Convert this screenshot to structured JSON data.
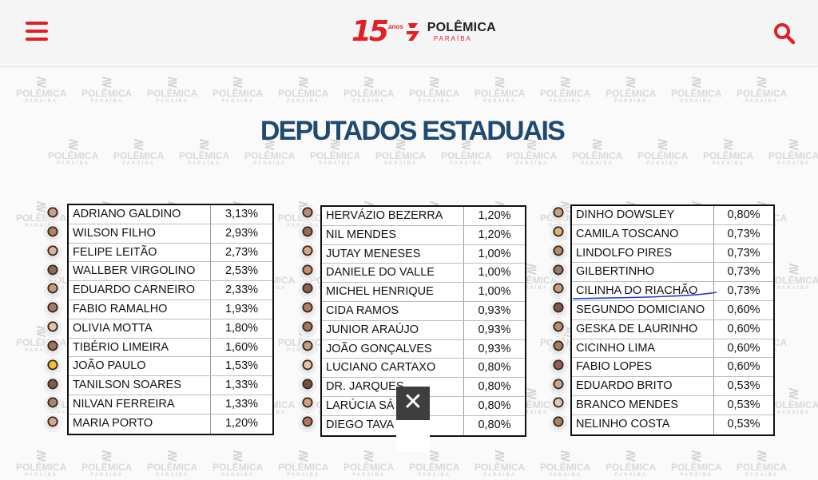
{
  "header": {
    "logo_number": "15",
    "logo_anos": "anos",
    "logo_brand": "POLÊMICA",
    "logo_sub": "PARAÍBA",
    "brand_color": "#e41e26"
  },
  "watermark": {
    "brand": "POLÊMICA",
    "sub": "PARAÍBA"
  },
  "main": {
    "title": "DEPUTADOS ESTADUAIS",
    "title_color": "#1f4a6f"
  },
  "tables": [
    {
      "rows": [
        {
          "name": "ADRIANO GALDINO",
          "pct": "3,13%"
        },
        {
          "name": "WILSON FILHO",
          "pct": "2,93%"
        },
        {
          "name": "FELIPE LEITÃO",
          "pct": "2,73%"
        },
        {
          "name": "WALLBER VIRGOLINO",
          "pct": "2,53%"
        },
        {
          "name": "EDUARDO CARNEIRO",
          "pct": "2,33%"
        },
        {
          "name": "FABIO RAMALHO",
          "pct": "1,93%"
        },
        {
          "name": "OLIVIA MOTTA",
          "pct": "1,80%"
        },
        {
          "name": "TIBÉRIO LIMEIRA",
          "pct": "1,60%"
        },
        {
          "name": "JOÃO PAULO",
          "pct": "1,53%"
        },
        {
          "name": "TANILSON SOARES",
          "pct": "1,33%"
        },
        {
          "name": "NILVAN FERREIRA",
          "pct": "1,33%"
        },
        {
          "name": "MARIA PORTO",
          "pct": "1,20%"
        }
      ]
    },
    {
      "rows": [
        {
          "name": "HERVÁZIO BEZERRA",
          "pct": "1,20%"
        },
        {
          "name": "NIL MENDES",
          "pct": "1,20%"
        },
        {
          "name": "JUTAY MENESES",
          "pct": "1,00%"
        },
        {
          "name": "DANIELE DO VALLE",
          "pct": "1,00%"
        },
        {
          "name": "MICHEL HENRIQUE",
          "pct": "1,00%"
        },
        {
          "name": "CIDA RAMOS",
          "pct": "0,93%"
        },
        {
          "name": "JUNIOR ARAÚJO",
          "pct": "0,93%"
        },
        {
          "name": "JOÃO GONÇALVES",
          "pct": "0,93%"
        },
        {
          "name": "LUCIANO CARTAXO",
          "pct": "0,80%"
        },
        {
          "name": "DR. JARQUES",
          "pct": "0,80%"
        },
        {
          "name": "LARÚCIA SÁ",
          "pct": "0,80%"
        },
        {
          "name": "DIEGO TAVA",
          "pct": "0,80%"
        }
      ]
    },
    {
      "rows": [
        {
          "name": "DINHO DOWSLEY",
          "pct": "0,80%"
        },
        {
          "name": "CAMILA TOSCANO",
          "pct": "0,73%"
        },
        {
          "name": "LINDOLFO PIRES",
          "pct": "0,73%"
        },
        {
          "name": "GILBERTINHO",
          "pct": "0,73%"
        },
        {
          "name": "CILINHA DO RIACHÃO",
          "pct": "0,73%"
        },
        {
          "name": "SEGUNDO DOMICIANO",
          "pct": "0,60%"
        },
        {
          "name": "GESKA DE LAURINHO",
          "pct": "0,60%"
        },
        {
          "name": "CICINHO LIMA",
          "pct": "0,60%"
        },
        {
          "name": "FABIO LOPES",
          "pct": "0,60%"
        },
        {
          "name": "EDUARDO BRITO",
          "pct": "0,53%"
        },
        {
          "name": "BRANCO MENDES",
          "pct": "0,53%"
        },
        {
          "name": "NELINHO COSTA",
          "pct": "0,53%"
        }
      ]
    }
  ],
  "ad": {
    "close_label": "✕"
  },
  "icons": {
    "menu": "hamburger-menu-icon",
    "search": "search-icon",
    "close": "close-icon"
  }
}
